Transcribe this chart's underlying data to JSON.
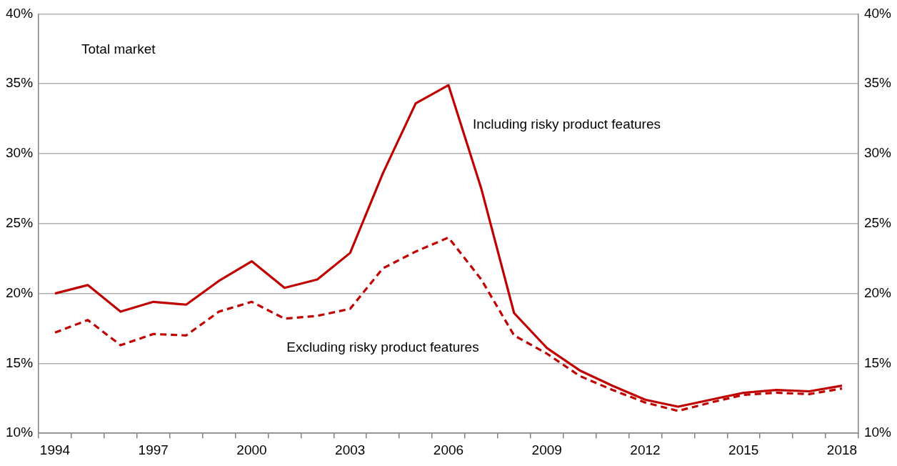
{
  "chart_data": {
    "type": "line",
    "annotations": [
      "Total market"
    ],
    "categories": [
      "1994",
      null,
      null,
      "1997",
      null,
      null,
      "2000",
      null,
      null,
      "2003",
      null,
      null,
      "2006",
      null,
      null,
      "2009",
      null,
      null,
      "2012",
      null,
      null,
      "2015",
      null,
      null,
      "2018"
    ],
    "series": [
      {
        "name": "Including risky product features",
        "color": "#c00000",
        "line_style": "solid",
        "values": [
          20.0,
          20.6,
          18.7,
          19.4,
          19.2,
          20.9,
          22.3,
          20.4,
          21.0,
          22.9,
          28.6,
          33.6,
          34.9,
          27.5,
          18.6,
          16.1,
          14.5,
          13.4,
          12.4,
          11.9,
          12.4,
          12.9,
          13.1,
          13.0,
          13.4
        ]
      },
      {
        "name": "Excluding risky product features",
        "color": "#c00000",
        "line_style": "dashed",
        "values": [
          17.2,
          18.1,
          16.3,
          17.1,
          17.0,
          18.7,
          19.4,
          18.2,
          18.4,
          18.9,
          21.8,
          23.0,
          24.0,
          21.0,
          17.0,
          15.7,
          14.1,
          13.1,
          12.2,
          11.6,
          12.2,
          12.75,
          12.9,
          12.8,
          13.2
        ]
      }
    ],
    "ylim": [
      10,
      40
    ],
    "yticks": [
      {
        "value": 10,
        "label": "10%"
      },
      {
        "value": 15,
        "label": "15%"
      },
      {
        "value": 20,
        "label": "20%"
      },
      {
        "value": 25,
        "label": "25%"
      },
      {
        "value": 30,
        "label": "30%"
      },
      {
        "value": 35,
        "label": "35%"
      },
      {
        "value": 40,
        "label": "40%"
      }
    ],
    "y2lim": [
      10,
      40
    ],
    "y2ticks": [
      {
        "value": 10,
        "label": "10%"
      },
      {
        "value": 15,
        "label": "15%"
      },
      {
        "value": 20,
        "label": "20%"
      },
      {
        "value": 25,
        "label": "25%"
      },
      {
        "value": 30,
        "label": "30%"
      },
      {
        "value": 35,
        "label": "35%"
      },
      {
        "value": 40,
        "label": "40%"
      }
    ],
    "grid": "y",
    "legend": false,
    "marker": "none"
  }
}
